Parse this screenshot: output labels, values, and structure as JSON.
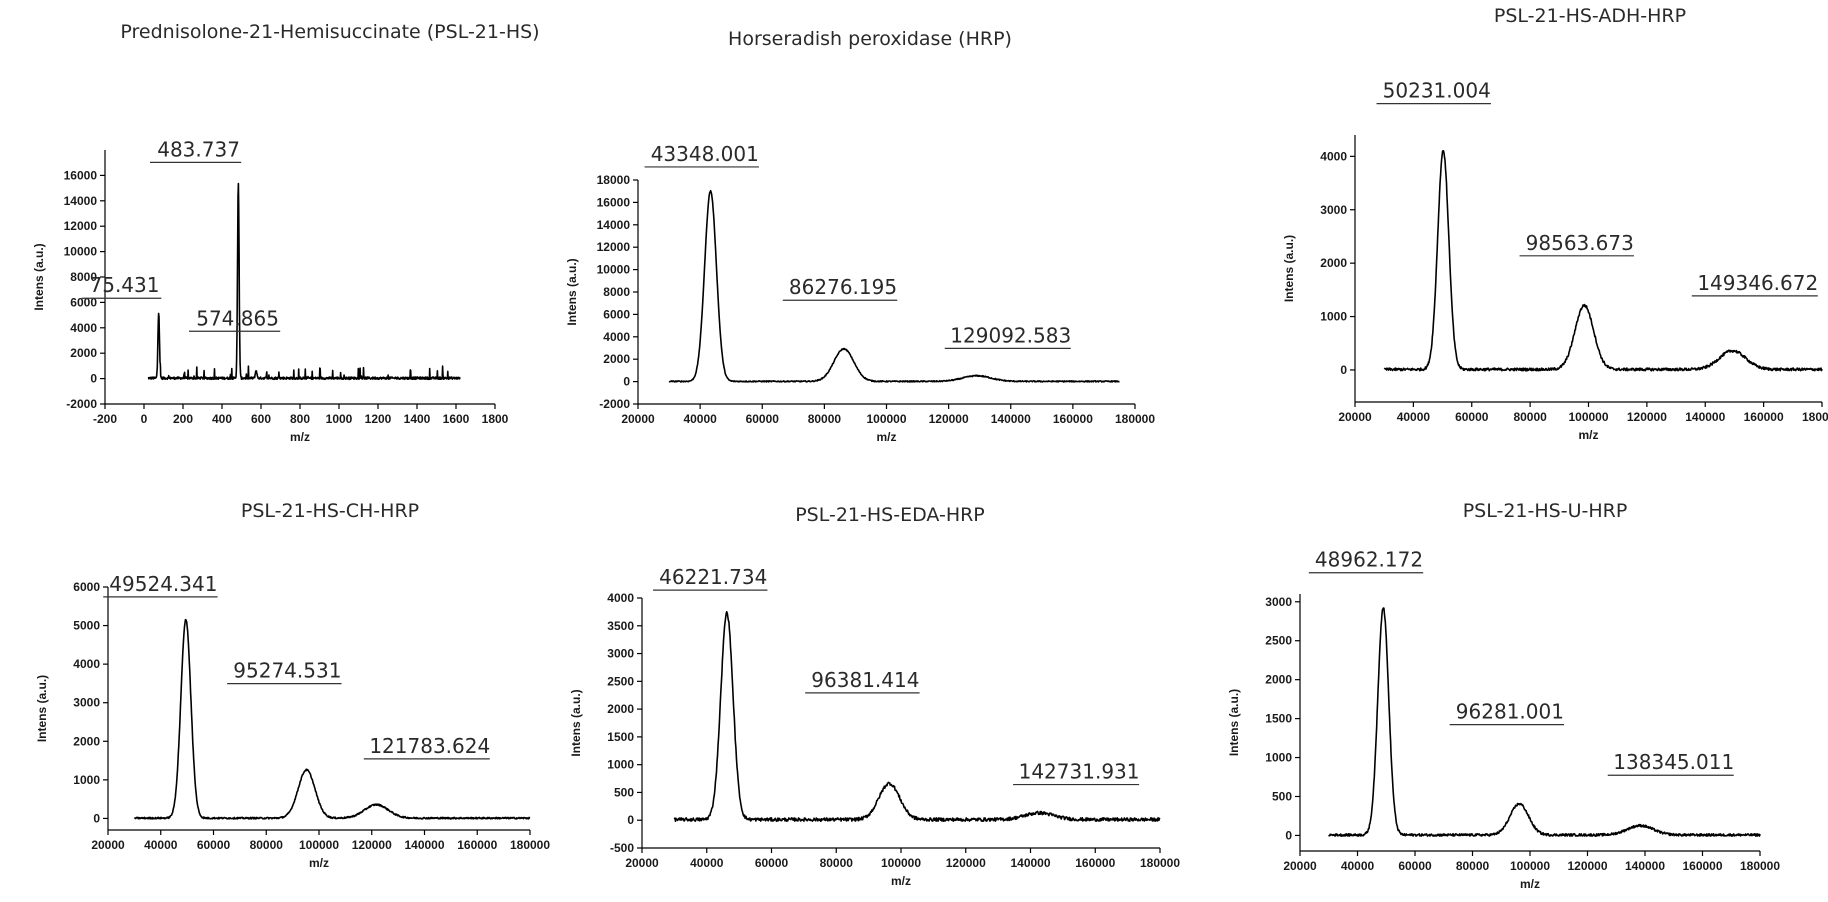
{
  "chart_data": [
    {
      "type": "line",
      "title": "Prednisolone-21-Hemisuccinate (PSL-21-HS)",
      "xlabel": "m/z",
      "ylabel": "Intens (a.u.)",
      "xlim": [
        -200,
        1800
      ],
      "ylim": [
        -2000,
        18000
      ],
      "xticks": [
        -200,
        0,
        200,
        400,
        600,
        800,
        1000,
        1200,
        1400,
        1600,
        1800
      ],
      "yticks": [
        -2000,
        0,
        2000,
        4000,
        6000,
        8000,
        10000,
        12000,
        14000,
        16000
      ],
      "ytick_labels": [
        "-2000",
        "0",
        "2000",
        "4000",
        "6000",
        "8000",
        "10000",
        "12000",
        "14000",
        "16000"
      ],
      "baseline": 0,
      "noise": 180,
      "range": [
        20,
        1620
      ],
      "peaks": [
        {
          "x": 75.431,
          "y": 5200,
          "label": "75.431"
        },
        {
          "x": 483.737,
          "y": 15300,
          "label": "483.737"
        },
        {
          "x": 574.865,
          "y": 600,
          "label": "574.865"
        }
      ],
      "annotations": [
        {
          "text": "75.431",
          "x": -100,
          "y": 6800
        },
        {
          "text": "483.737",
          "x": 280,
          "y": 17500
        },
        {
          "text": "574.865",
          "x": 480,
          "y": 4200
        }
      ]
    },
    {
      "type": "line",
      "title": "Horseradish peroxidase (HRP)",
      "xlabel": "m/z",
      "ylabel": "Intens (a.u.)",
      "xlim": [
        20000,
        180000
      ],
      "ylim": [
        -2000,
        18000
      ],
      "xticks": [
        20000,
        40000,
        60000,
        80000,
        100000,
        120000,
        140000,
        160000,
        180000
      ],
      "xtick_labels": [
        "20000",
        "40000",
        "60000",
        "80000",
        "100000",
        "120000",
        "140000",
        "160000",
        "180000"
      ],
      "yticks": [
        -2000,
        0,
        2000,
        4000,
        6000,
        8000,
        10000,
        12000,
        14000,
        16000,
        18000
      ],
      "ytick_labels": [
        "-2000",
        "0",
        "2000",
        "4000",
        "6000",
        "8000",
        "10000",
        "12000",
        "14000",
        "16000",
        "18000"
      ],
      "baseline": 0,
      "noise": 100,
      "range": [
        30000,
        175000
      ],
      "peaks": [
        {
          "x": 43348.001,
          "y": 17000,
          "label": "43348.001"
        },
        {
          "x": 86276.195,
          "y": 2900,
          "label": "86276.195"
        },
        {
          "x": 129092.583,
          "y": 500,
          "label": "129092.583"
        }
      ],
      "annotations": [
        {
          "text": "43348.001",
          "x": 41500,
          "y": 19700
        },
        {
          "text": "86276.195",
          "x": 86000,
          "y": 7800
        },
        {
          "text": "129092.583",
          "x": 140000,
          "y": 3500
        }
      ]
    },
    {
      "type": "line",
      "title": "PSL-21-HS-ADH-HRP",
      "xlabel": "m/z",
      "ylabel": "Intens (a.u.)",
      "xlim": [
        20000,
        180000
      ],
      "ylim": [
        -600,
        4400
      ],
      "xticks": [
        20000,
        40000,
        60000,
        80000,
        100000,
        120000,
        140000,
        160000,
        180000
      ],
      "xtick_labels": [
        "20000",
        "40000",
        "60000",
        "80000",
        "100000",
        "120000",
        "140000",
        "160000",
        "180000"
      ],
      "yticks": [
        0,
        1000,
        2000,
        3000,
        4000
      ],
      "ytick_labels": [
        "0",
        "1000",
        "2000",
        "3000",
        "4000"
      ],
      "baseline": 0,
      "noise": 50,
      "range": [
        30000,
        180000
      ],
      "peaks": [
        {
          "x": 50231.004,
          "y": 4100,
          "label": "50231.004"
        },
        {
          "x": 98563.673,
          "y": 1200,
          "label": "98563.673"
        },
        {
          "x": 149346.672,
          "y": 350,
          "label": "149346.672"
        }
      ],
      "annotations": [
        {
          "text": "50231.004",
          "x": 48000,
          "y": 5100
        },
        {
          "text": "98563.673",
          "x": 97000,
          "y": 2250
        },
        {
          "text": "149346.672",
          "x": 158000,
          "y": 1500
        }
      ]
    },
    {
      "type": "line",
      "title": "PSL-21-HS-CH-HRP",
      "xlabel": "m/z",
      "ylabel": "Intens (a.u.)",
      "xlim": [
        20000,
        180000
      ],
      "ylim": [
        -300,
        6000
      ],
      "xticks": [
        20000,
        40000,
        60000,
        80000,
        100000,
        120000,
        140000,
        160000,
        180000
      ],
      "xtick_labels": [
        "20000",
        "40000",
        "60000",
        "80000",
        "100000",
        "120000",
        "140000",
        "160000",
        "180000"
      ],
      "yticks": [
        0,
        1000,
        2000,
        3000,
        4000,
        5000,
        6000
      ],
      "ytick_labels": [
        "0",
        "1000",
        "2000",
        "3000",
        "4000",
        "5000",
        "6000"
      ],
      "baseline": 0,
      "noise": 40,
      "range": [
        30000,
        180000
      ],
      "peaks": [
        {
          "x": 49524.341,
          "y": 5150,
          "label": "49524.341"
        },
        {
          "x": 95274.531,
          "y": 1250,
          "label": "95274.531"
        },
        {
          "x": 121783.624,
          "y": 350,
          "label": "121783.624"
        }
      ],
      "annotations": [
        {
          "text": "49524.341",
          "x": 41000,
          "y": 5900
        },
        {
          "text": "95274.531",
          "x": 88000,
          "y": 3650
        },
        {
          "text": "121783.624",
          "x": 142000,
          "y": 1700
        }
      ]
    },
    {
      "type": "line",
      "title": "PSL-21-HS-EDA-HRP",
      "xlabel": "m/z",
      "ylabel": "Intens (a.u.)",
      "xlim": [
        20000,
        180000
      ],
      "ylim": [
        -500,
        4000
      ],
      "xticks": [
        20000,
        40000,
        60000,
        80000,
        100000,
        120000,
        140000,
        160000,
        180000
      ],
      "xtick_labels": [
        "20000",
        "40000",
        "60000",
        "80000",
        "100000",
        "120000",
        "140000",
        "160000",
        "180000"
      ],
      "yticks": [
        -500,
        0,
        500,
        1000,
        1500,
        2000,
        2500,
        3000,
        3500,
        4000
      ],
      "ytick_labels": [
        "-500",
        "0",
        "500",
        "1000",
        "1500",
        "2000",
        "2500",
        "3000",
        "3500",
        "4000"
      ],
      "baseline": 0,
      "noise": 60,
      "range": [
        30000,
        180000
      ],
      "peaks": [
        {
          "x": 46221.734,
          "y": 3720,
          "label": "46221.734"
        },
        {
          "x": 96381.414,
          "y": 650,
          "label": "96381.414"
        },
        {
          "x": 142731.931,
          "y": 120,
          "label": "142731.931"
        }
      ],
      "annotations": [
        {
          "text": "46221.734",
          "x": 42000,
          "y": 4250
        },
        {
          "text": "96381.414",
          "x": 89000,
          "y": 2400
        },
        {
          "text": "142731.931",
          "x": 155000,
          "y": 750
        }
      ]
    },
    {
      "type": "line",
      "title": "PSL-21-HS-U-HRP",
      "xlabel": "m/z",
      "ylabel": "Intens (a.u.)",
      "xlim": [
        20000,
        180000
      ],
      "ylim": [
        -200,
        3100
      ],
      "xticks": [
        20000,
        40000,
        60000,
        80000,
        100000,
        120000,
        140000,
        160000,
        180000
      ],
      "xtick_labels": [
        "20000",
        "40000",
        "60000",
        "80000",
        "100000",
        "120000",
        "140000",
        "160000",
        "180000"
      ],
      "yticks": [
        0,
        500,
        1000,
        1500,
        2000,
        2500,
        3000
      ],
      "ytick_labels": [
        "0",
        "500",
        "1000",
        "1500",
        "2000",
        "2500",
        "3000"
      ],
      "baseline": 0,
      "noise": 30,
      "range": [
        30000,
        180000
      ],
      "peaks": [
        {
          "x": 48962.172,
          "y": 2920,
          "label": "48962.172"
        },
        {
          "x": 96281.001,
          "y": 400,
          "label": "96281.001"
        },
        {
          "x": 138345.011,
          "y": 120,
          "label": "138345.011"
        }
      ],
      "annotations": [
        {
          "text": "48962.172",
          "x": 44000,
          "y": 3450
        },
        {
          "text": "96281.001",
          "x": 93000,
          "y": 1500
        },
        {
          "text": "138345.011",
          "x": 150000,
          "y": 850
        }
      ]
    }
  ]
}
